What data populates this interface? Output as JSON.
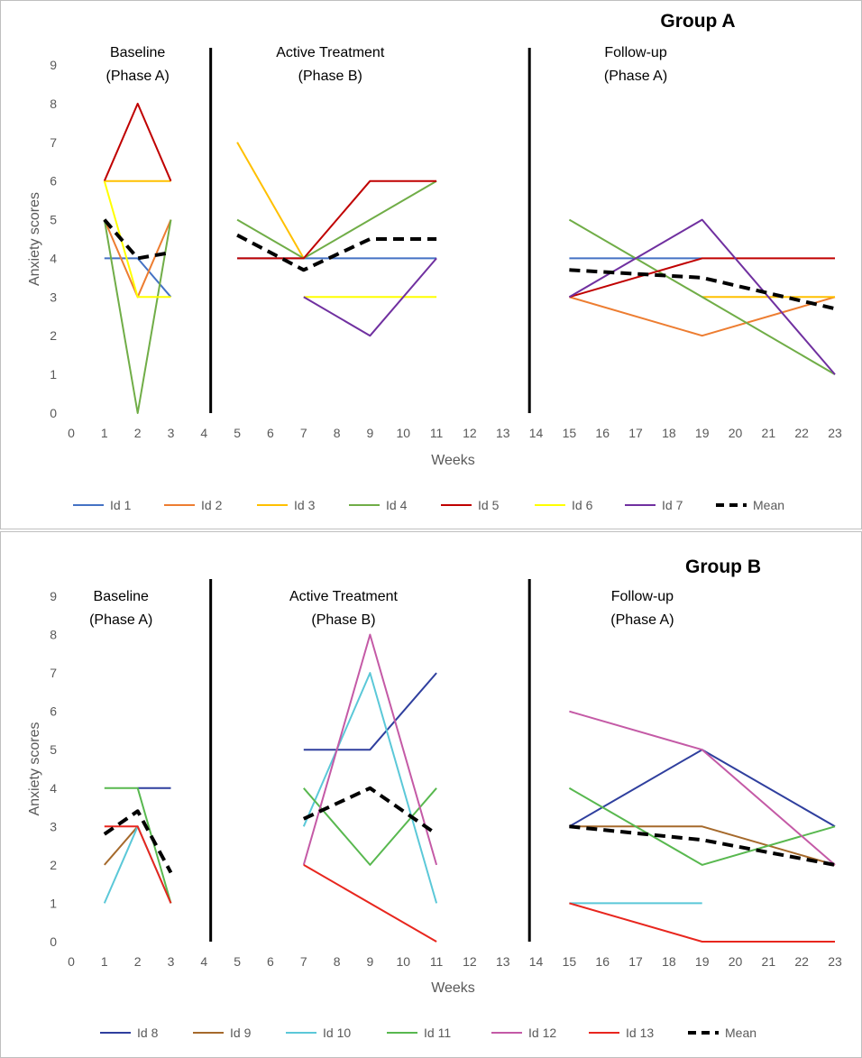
{
  "chart_data": [
    {
      "type": "line",
      "title": "Group A",
      "xlabel": "Weeks",
      "ylabel": "Anxiety scores",
      "xlim": [
        0,
        23
      ],
      "ylim": [
        0,
        9
      ],
      "x_ticks": [
        0,
        1,
        2,
        3,
        4,
        5,
        6,
        7,
        8,
        9,
        10,
        11,
        12,
        13,
        14,
        15,
        16,
        17,
        18,
        19,
        20,
        21,
        22,
        23
      ],
      "y_ticks": [
        0,
        1,
        2,
        3,
        4,
        5,
        6,
        7,
        8,
        9
      ],
      "phase_dividers": [
        4.2,
        13.8
      ],
      "phases": [
        {
          "title": "Baseline",
          "subtitle": "(Phase A)",
          "x_center": 2
        },
        {
          "title": "Active Treatment",
          "subtitle": "(Phase B)",
          "x_center": 7.8
        },
        {
          "title": "Follow-up",
          "subtitle": "(Phase A)",
          "x_center": 17
        }
      ],
      "series": [
        {
          "name": "Id 1",
          "color": "#4472c4",
          "segments": [
            [
              [
                1,
                4
              ],
              [
                2,
                4
              ],
              [
                3,
                3
              ]
            ],
            [
              [
                5,
                4
              ],
              [
                7,
                4
              ],
              [
                9,
                4
              ],
              [
                11,
                4
              ]
            ],
            [
              [
                15,
                4
              ],
              [
                19,
                4
              ]
            ]
          ]
        },
        {
          "name": "Id 2",
          "color": "#ed7d31",
          "segments": [
            [
              [
                1,
                5
              ],
              [
                2,
                3
              ],
              [
                3,
                5
              ]
            ],
            [
              [
                15,
                3
              ],
              [
                19,
                2
              ],
              [
                23,
                3
              ]
            ]
          ]
        },
        {
          "name": "Id 3",
          "color": "#ffc000",
          "segments": [
            [
              [
                1,
                6
              ],
              [
                2,
                6
              ],
              [
                3,
                6
              ]
            ],
            [
              [
                5,
                7
              ],
              [
                7,
                4
              ]
            ],
            [
              [
                19,
                3
              ],
              [
                23,
                3
              ]
            ]
          ]
        },
        {
          "name": "Id 4",
          "color": "#70ad47",
          "segments": [
            [
              [
                1,
                5
              ],
              [
                2,
                0
              ],
              [
                3,
                5
              ]
            ],
            [
              [
                5,
                5
              ],
              [
                7,
                4
              ],
              [
                11,
                6
              ]
            ],
            [
              [
                15,
                5
              ],
              [
                19,
                3
              ],
              [
                23,
                1
              ]
            ]
          ]
        },
        {
          "name": "Id 5",
          "color": "#c00000",
          "segments": [
            [
              [
                1,
                6
              ],
              [
                2,
                8
              ],
              [
                3,
                6
              ]
            ],
            [
              [
                5,
                4
              ],
              [
                7,
                4
              ],
              [
                9,
                6
              ],
              [
                11,
                6
              ]
            ],
            [
              [
                15,
                3
              ],
              [
                19,
                4
              ],
              [
                23,
                4
              ]
            ]
          ]
        },
        {
          "name": "Id 6",
          "color": "#ffff00",
          "segments": [
            [
              [
                1,
                6
              ],
              [
                2,
                3
              ],
              [
                3,
                3
              ]
            ],
            [
              [
                7,
                3
              ],
              [
                11,
                3
              ]
            ]
          ]
        },
        {
          "name": "Id 7",
          "color": "#7030a0",
          "segments": [
            [
              [
                7,
                3
              ],
              [
                9,
                2
              ],
              [
                11,
                4
              ]
            ],
            [
              [
                15,
                3
              ],
              [
                19,
                5
              ],
              [
                23,
                1
              ]
            ]
          ]
        },
        {
          "name": "Mean",
          "color": "#000000",
          "dashed": true,
          "segments": [
            [
              [
                1,
                5
              ],
              [
                2,
                4
              ],
              [
                3,
                4.15
              ]
            ],
            [
              [
                5,
                4.6
              ],
              [
                7,
                3.7
              ],
              [
                9,
                4.5
              ],
              [
                11,
                4.5
              ]
            ],
            [
              [
                15,
                3.7
              ],
              [
                19,
                3.5
              ],
              [
                23,
                2.7
              ]
            ]
          ]
        }
      ]
    },
    {
      "type": "line",
      "title": "Group B",
      "xlabel": "Weeks",
      "ylabel": "Anxiety scores",
      "xlim": [
        0,
        23
      ],
      "ylim": [
        0,
        9
      ],
      "x_ticks": [
        0,
        1,
        2,
        3,
        4,
        5,
        6,
        7,
        8,
        9,
        10,
        11,
        12,
        13,
        14,
        15,
        16,
        17,
        18,
        19,
        20,
        21,
        22,
        23
      ],
      "y_ticks": [
        0,
        1,
        2,
        3,
        4,
        5,
        6,
        7,
        8,
        9
      ],
      "phase_dividers": [
        4.2,
        13.8
      ],
      "phases": [
        {
          "title": "Baseline",
          "subtitle": "(Phase A)",
          "x_center": 1.5
        },
        {
          "title": "Active Treatment",
          "subtitle": "(Phase B)",
          "x_center": 8.2
        },
        {
          "title": "Follow-up",
          "subtitle": "(Phase A)",
          "x_center": 17.2
        }
      ],
      "series": [
        {
          "name": "Id 8",
          "color": "#2f3f9e",
          "segments": [
            [
              [
                2,
                4
              ],
              [
                3,
                4
              ]
            ],
            [
              [
                7,
                5
              ],
              [
                9,
                5
              ],
              [
                11,
                7
              ]
            ],
            [
              [
                15,
                3
              ],
              [
                19,
                5
              ],
              [
                23,
                3
              ]
            ]
          ]
        },
        {
          "name": "Id 9",
          "color": "#a5692b",
          "segments": [
            [
              [
                1,
                2
              ],
              [
                2,
                3
              ]
            ],
            [
              [
                15,
                3
              ],
              [
                19,
                3
              ],
              [
                23,
                2
              ]
            ]
          ]
        },
        {
          "name": "Id 10",
          "color": "#5bc8d8",
          "segments": [
            [
              [
                1,
                1
              ],
              [
                2,
                3
              ],
              [
                3,
                1
              ]
            ],
            [
              [
                7,
                3
              ],
              [
                9,
                7
              ],
              [
                11,
                1
              ]
            ],
            [
              [
                15,
                1
              ],
              [
                19,
                1
              ]
            ]
          ]
        },
        {
          "name": "Id 11",
          "color": "#58b84f",
          "segments": [
            [
              [
                1,
                4
              ],
              [
                2,
                4
              ],
              [
                3,
                1
              ]
            ],
            [
              [
                7,
                4
              ],
              [
                9,
                2
              ],
              [
                11,
                4
              ]
            ],
            [
              [
                15,
                4
              ],
              [
                19,
                2
              ],
              [
                23,
                3
              ]
            ]
          ]
        },
        {
          "name": "Id 12",
          "color": "#c45aa6",
          "segments": [
            [
              [
                7,
                2
              ],
              [
                9,
                8
              ],
              [
                11,
                2
              ]
            ],
            [
              [
                15,
                6
              ],
              [
                19,
                5
              ],
              [
                23,
                2
              ]
            ]
          ]
        },
        {
          "name": "Id 13",
          "color": "#e8261e",
          "segments": [
            [
              [
                1,
                3
              ],
              [
                2,
                3
              ],
              [
                3,
                1
              ]
            ],
            [
              [
                7,
                2
              ],
              [
                11,
                0
              ]
            ],
            [
              [
                15,
                1
              ],
              [
                19,
                0
              ],
              [
                23,
                0
              ]
            ]
          ]
        },
        {
          "name": "Mean",
          "color": "#000000",
          "dashed": true,
          "segments": [
            [
              [
                1,
                2.8
              ],
              [
                2,
                3.4
              ],
              [
                3,
                1.8
              ]
            ],
            [
              [
                7,
                3.2
              ],
              [
                9,
                4
              ],
              [
                11,
                2.8
              ]
            ],
            [
              [
                15,
                3
              ],
              [
                19,
                2.65
              ],
              [
                23,
                2
              ]
            ]
          ]
        }
      ]
    }
  ]
}
